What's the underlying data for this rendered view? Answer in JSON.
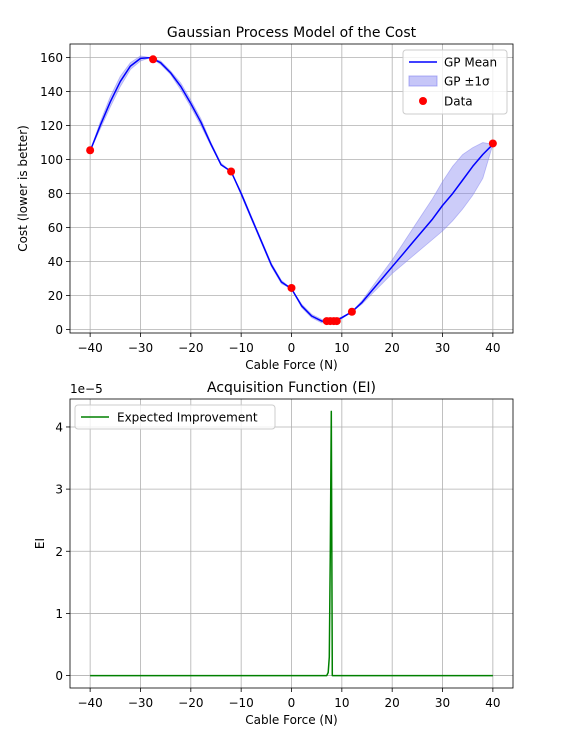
{
  "chart_data": [
    {
      "type": "line",
      "title": "Gaussian Process Model of the Cost",
      "xlabel": "Cable Force (N)",
      "ylabel": "Cost (lower is better)",
      "xlim": [
        -44,
        44
      ],
      "ylim": [
        -2,
        168
      ],
      "xticks": [
        -40,
        -30,
        -20,
        -10,
        0,
        10,
        20,
        30,
        40
      ],
      "yticks": [
        0,
        20,
        40,
        60,
        80,
        100,
        120,
        140,
        160
      ],
      "grid": true,
      "legend_position": "top-right",
      "colors": {
        "mean": "#0000ff",
        "band": "#8080f0",
        "data": "#ff0000"
      },
      "series": [
        {
          "name": "GP Mean",
          "style": "line",
          "x": [
            -40,
            -38,
            -36,
            -34,
            -32,
            -30,
            -28,
            -26,
            -24,
            -22,
            -20,
            -18,
            -16,
            -14,
            -12,
            -10,
            -8,
            -6,
            -4,
            -2,
            0,
            2,
            4,
            6,
            7,
            8,
            9,
            10,
            12,
            14,
            16,
            18,
            20,
            22,
            24,
            26,
            28,
            30,
            32,
            34,
            36,
            38,
            40
          ],
          "y": [
            105,
            120,
            134,
            146,
            155,
            159.5,
            160,
            157,
            151,
            143,
            133,
            122,
            109,
            97,
            93,
            80,
            66,
            52,
            38,
            28,
            24,
            14,
            8,
            5,
            5,
            5,
            5.5,
            7,
            10.5,
            16,
            23,
            30,
            37,
            44,
            51,
            58,
            65,
            73,
            80,
            88,
            96,
            103,
            109
          ]
        },
        {
          "name": "GP ±1σ",
          "style": "band",
          "x": [
            -40,
            -38,
            -36,
            -34,
            -32,
            -30,
            -28,
            -26,
            -24,
            -22,
            -20,
            -18,
            -16,
            -14,
            -12,
            -10,
            -8,
            -6,
            -4,
            -2,
            0,
            2,
            4,
            6,
            8,
            10,
            12,
            14,
            16,
            18,
            20,
            22,
            24,
            26,
            28,
            30,
            32,
            34,
            36,
            38,
            40
          ],
          "lower": [
            105,
            118,
            131,
            143,
            153,
            158,
            160,
            156,
            150,
            141,
            131,
            120,
            108,
            97,
            93,
            79,
            65,
            51,
            37,
            27,
            24,
            13,
            7,
            4,
            4.5,
            6.5,
            10.5,
            15,
            21,
            27,
            33,
            38,
            43,
            48,
            53,
            58,
            64,
            71,
            79,
            89,
            109
          ],
          "upper": [
            105,
            122,
            137,
            149,
            157,
            161,
            160,
            158,
            152,
            145,
            135,
            124,
            110,
            98,
            93,
            81,
            67,
            53,
            39,
            29,
            24,
            15,
            9,
            6,
            5.5,
            7.5,
            10.5,
            17,
            25,
            33,
            41,
            50,
            59,
            68,
            77,
            87,
            96,
            103,
            107,
            110,
            109
          ]
        },
        {
          "name": "Data",
          "style": "scatter",
          "x": [
            -40,
            -27.5,
            -12,
            0,
            7,
            7.7,
            8.4,
            9,
            12,
            40
          ],
          "y": [
            105.5,
            159,
            93,
            24.5,
            5,
            5,
            5,
            5,
            10.5,
            109.5
          ]
        }
      ]
    },
    {
      "type": "line",
      "title": "Acquisition Function (EI)",
      "xlabel": "Cable Force (N)",
      "ylabel": "EI",
      "offset_text": "1e−5",
      "xlim": [
        -44,
        44
      ],
      "ylim": [
        -0.2,
        4.45
      ],
      "xticks": [
        -40,
        -30,
        -20,
        -10,
        0,
        10,
        20,
        30,
        40
      ],
      "yticks": [
        0,
        1,
        2,
        3,
        4
      ],
      "grid": true,
      "legend_position": "top-left",
      "colors": {
        "ei": "#008000"
      },
      "series": [
        {
          "name": "Expected Improvement",
          "style": "line",
          "x": [
            -40,
            7.0,
            7.3,
            7.5,
            7.7,
            7.9,
            8.1,
            40
          ],
          "y": [
            0,
            0,
            0.05,
            0.3,
            2.0,
            4.25,
            0,
            0
          ]
        }
      ]
    }
  ]
}
